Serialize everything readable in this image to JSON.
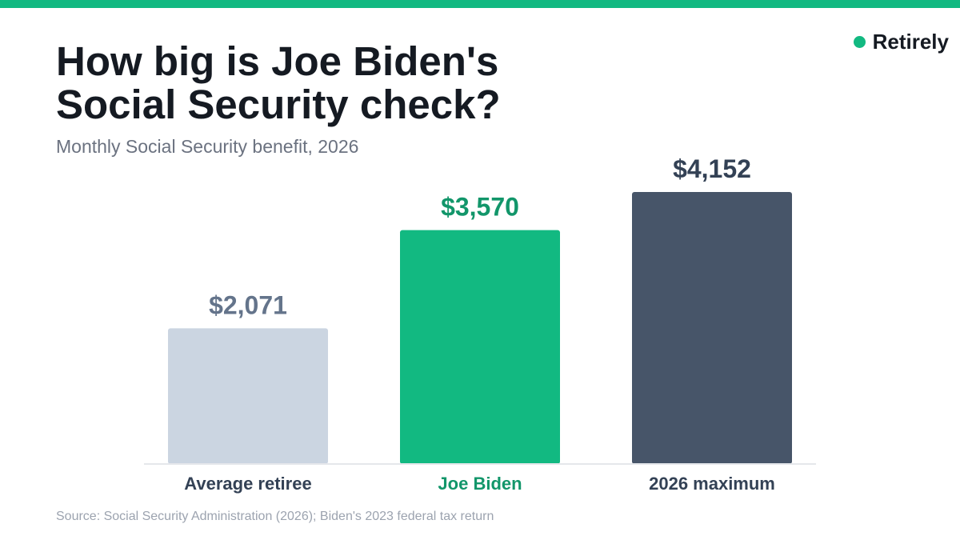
{
  "brand": {
    "name": "Retirely",
    "color": "#12b981"
  },
  "header": {
    "title": "How big is Joe Biden's Social Security check?",
    "subtitle": "Monthly Social Security benefit, 2026"
  },
  "footer": {
    "source": "Source: Social Security Administration (2026); Biden's 2023 federal tax return"
  },
  "chart_data": {
    "type": "bar",
    "title": "How big is Joe Biden's Social Security check?",
    "subtitle": "Monthly Social Security benefit, 2026",
    "categories": [
      "Average retiree",
      "Joe Biden",
      "2026 maximum"
    ],
    "values": [
      2071,
      3570,
      4152
    ],
    "value_labels": [
      "$2,071",
      "$3,570",
      "$4,152"
    ],
    "bar_colors": [
      "#cbd5e1",
      "#12b981",
      "#475569"
    ],
    "label_colors": [
      "#64748b",
      "#12966a",
      "#334155"
    ],
    "category_label_colors": [
      "#334155",
      "#12966a",
      "#334155"
    ],
    "xlabel": "",
    "ylabel": "",
    "ylim": [
      0,
      4152
    ],
    "grid": false,
    "legend": "none"
  }
}
